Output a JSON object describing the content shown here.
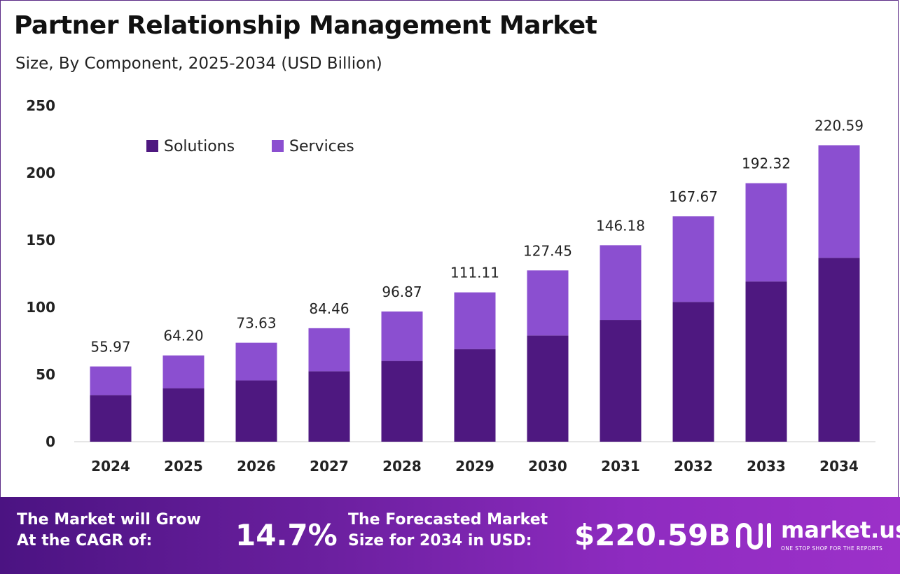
{
  "header": {
    "title": "Partner Relationship Management Market",
    "subtitle": "Size, By Component, 2025-2034 (USD Billion)"
  },
  "chart_data": {
    "type": "bar",
    "stacked": true,
    "categories": [
      "2024",
      "2025",
      "2026",
      "2027",
      "2028",
      "2029",
      "2030",
      "2031",
      "2032",
      "2033",
      "2034"
    ],
    "series": [
      {
        "name": "Solutions",
        "color": "#4e1880",
        "values": [
          34.7,
          39.8,
          45.6,
          52.4,
          60.1,
          68.9,
          79.0,
          90.6,
          104.0,
          119.2,
          136.8
        ]
      },
      {
        "name": "Services",
        "color": "#8b4fd0",
        "values": [
          21.27,
          24.4,
          28.03,
          32.06,
          36.77,
          42.21,
          48.45,
          55.58,
          63.67,
          73.12,
          83.79
        ]
      }
    ],
    "totals": [
      "55.97",
      "64.20",
      "73.63",
      "84.46",
      "96.87",
      "111.11",
      "127.45",
      "146.18",
      "167.67",
      "192.32",
      "220.59"
    ],
    "y_ticks": [
      "0",
      "50",
      "100",
      "150",
      "200",
      "250"
    ],
    "ylim": [
      0,
      250
    ],
    "legend_position": "top-left"
  },
  "footer": {
    "cagr_label_line1": "The Market will Grow",
    "cagr_label_line2": "At the CAGR of:",
    "cagr_value": "14.7%",
    "forecast_label_line1": "The Forecasted Market",
    "forecast_label_line2": "Size for 2034 in USD:",
    "forecast_value": "$220.59B",
    "logo_name": "market.us",
    "logo_tagline": "ONE STOP SHOP FOR THE REPORTS"
  }
}
